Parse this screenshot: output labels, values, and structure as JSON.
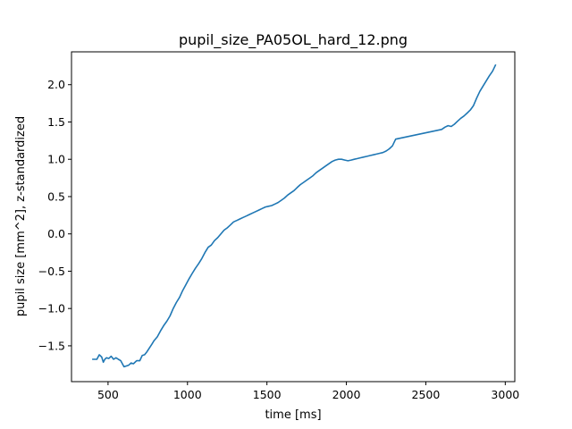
{
  "chart_data": {
    "type": "line",
    "title": "pupil_size_PA05OL_hard_12.png",
    "xlabel": "time [ms]",
    "ylabel": "pupil size [mm^2], z-standardized",
    "xlim": [
      270,
      3060
    ],
    "ylim": [
      -1.98,
      2.44
    ],
    "xticks": [
      500,
      1000,
      1500,
      2000,
      2500,
      3000
    ],
    "yticks": [
      -1.5,
      -1.0,
      -0.5,
      0.0,
      0.5,
      1.0,
      1.5,
      2.0
    ],
    "xtick_labels": [
      "500",
      "1000",
      "1500",
      "2000",
      "2500",
      "3000"
    ],
    "ytick_labels": [
      "−1.5",
      "−1.0",
      "−0.5",
      "0.0",
      "0.5",
      "1.0",
      "1.5",
      "2.0"
    ],
    "grid": false,
    "series": [
      {
        "color": "#1f77b4",
        "x": [
          400,
          430,
          445,
          460,
          470,
          480,
          490,
          505,
          520,
          535,
          550,
          565,
          580,
          600,
          615,
          630,
          645,
          660,
          680,
          700,
          715,
          730,
          745,
          760,
          775,
          790,
          810,
          830,
          850,
          870,
          890,
          910,
          930,
          950,
          970,
          990,
          1010,
          1030,
          1050,
          1070,
          1090,
          1110,
          1130,
          1150,
          1170,
          1190,
          1210,
          1230,
          1250,
          1270,
          1290,
          1310,
          1330,
          1350,
          1370,
          1390,
          1410,
          1430,
          1450,
          1470,
          1490,
          1510,
          1530,
          1550,
          1570,
          1590,
          1610,
          1630,
          1650,
          1670,
          1690,
          1710,
          1730,
          1750,
          1770,
          1790,
          1810,
          1830,
          1850,
          1870,
          1890,
          1910,
          1930,
          1950,
          1970,
          1990,
          2010,
          2030,
          2050,
          2070,
          2090,
          2110,
          2130,
          2150,
          2170,
          2190,
          2210,
          2230,
          2250,
          2270,
          2290,
          2310,
          2600,
          2620,
          2640,
          2660,
          2680,
          2700,
          2720,
          2740,
          2760,
          2780,
          2800,
          2820,
          2840,
          2860,
          2880,
          2900,
          2920,
          2940
        ],
        "y": [
          -1.68,
          -1.68,
          -1.62,
          -1.65,
          -1.72,
          -1.68,
          -1.66,
          -1.67,
          -1.64,
          -1.68,
          -1.66,
          -1.68,
          -1.7,
          -1.78,
          -1.77,
          -1.76,
          -1.73,
          -1.74,
          -1.7,
          -1.7,
          -1.63,
          -1.62,
          -1.58,
          -1.53,
          -1.48,
          -1.43,
          -1.38,
          -1.3,
          -1.23,
          -1.17,
          -1.1,
          -1.0,
          -0.92,
          -0.85,
          -0.76,
          -0.68,
          -0.6,
          -0.53,
          -0.46,
          -0.4,
          -0.33,
          -0.25,
          -0.18,
          -0.15,
          -0.09,
          -0.05,
          0.0,
          0.05,
          0.08,
          0.12,
          0.16,
          0.18,
          0.2,
          0.22,
          0.24,
          0.26,
          0.28,
          0.3,
          0.32,
          0.34,
          0.36,
          0.37,
          0.38,
          0.4,
          0.42,
          0.45,
          0.48,
          0.52,
          0.55,
          0.58,
          0.62,
          0.66,
          0.69,
          0.72,
          0.75,
          0.78,
          0.82,
          0.85,
          0.88,
          0.91,
          0.94,
          0.97,
          0.99,
          1.0,
          1.0,
          0.99,
          0.98,
          0.99,
          1.0,
          1.01,
          1.02,
          1.03,
          1.04,
          1.05,
          1.06,
          1.07,
          1.08,
          1.09,
          1.11,
          1.14,
          1.18,
          1.27,
          1.4,
          1.43,
          1.45,
          1.44,
          1.47,
          1.51,
          1.55,
          1.58,
          1.62,
          1.66,
          1.72,
          1.82,
          1.91,
          1.98,
          2.05,
          2.12,
          2.18,
          2.27
        ]
      }
    ]
  }
}
